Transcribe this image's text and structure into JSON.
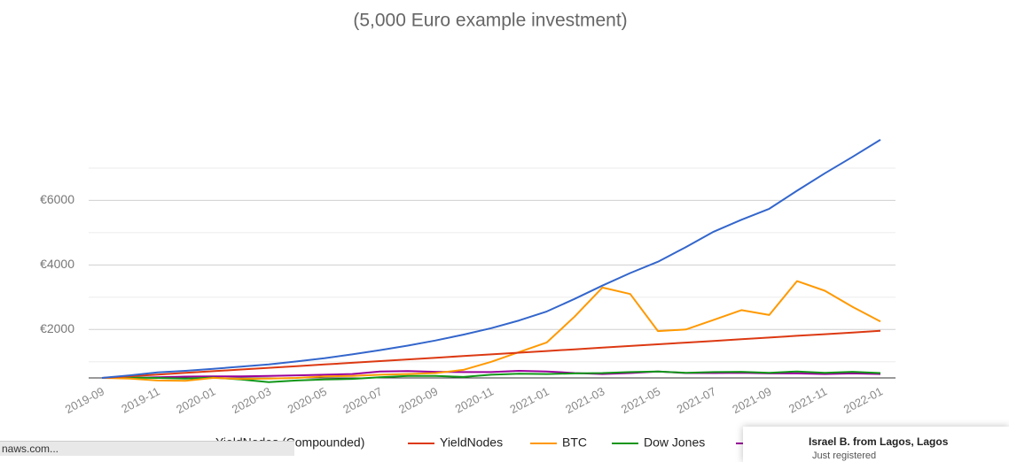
{
  "chart_data": {
    "type": "line",
    "title": "(5,000 Euro example investment)",
    "categories": [
      "2019-09",
      null,
      "2019-11",
      null,
      "2020-01",
      null,
      "2020-03",
      null,
      "2020-05",
      null,
      "2020-07",
      null,
      "2020-09",
      null,
      "2020-11",
      null,
      "2021-01",
      null,
      "2021-03",
      null,
      "2021-05",
      null,
      "2021-07",
      null,
      "2021-09",
      null,
      "2021-11",
      null,
      "2022-01"
    ],
    "ylim": [
      500,
      8000
    ],
    "yticks": [
      {
        "value": 2000,
        "label": "€2000"
      },
      {
        "value": 4000,
        "label": "€4000"
      },
      {
        "value": 6000,
        "label": "€6000"
      }
    ],
    "minor_grid": [
      1000,
      3000,
      5000,
      7000
    ],
    "grid": true,
    "series": [
      {
        "name": "YieldNodes (Compounded)",
        "color": "#3366cc",
        "values": [
          500,
          580,
          670,
          720,
          780,
          850,
          920,
          1010,
          1110,
          1230,
          1360,
          1500,
          1660,
          1840,
          2040,
          2280,
          2560,
          2950,
          3360,
          3750,
          4100,
          4550,
          5030,
          5400,
          5740,
          6300,
          6840,
          7350,
          7880
        ]
      },
      {
        "name": "YieldNodes",
        "color": "#dc3912",
        "values": [
          500,
          552,
          604,
          656,
          709,
          761,
          813,
          865,
          917,
          969,
          1021,
          1073,
          1126,
          1178,
          1230,
          1282,
          1334,
          1386,
          1439,
          1491,
          1543,
          1595,
          1647,
          1699,
          1751,
          1804,
          1856,
          1908,
          1960
        ]
      },
      {
        "name": "BTC",
        "color": "#ff9900",
        "values": [
          500,
          480,
          420,
          410,
          500,
          470,
          480,
          500,
          550,
          560,
          600,
          620,
          650,
          750,
          1000,
          1300,
          1600,
          2400,
          3300,
          3100,
          1950,
          2000,
          2300,
          2600,
          2450,
          3500,
          3200,
          2700,
          2250
        ]
      },
      {
        "name": "Dow Jones",
        "color": "#109618",
        "values": [
          500,
          510,
          500,
          480,
          510,
          450,
          370,
          420,
          450,
          470,
          520,
          560,
          560,
          530,
          600,
          630,
          620,
          640,
          650,
          680,
          700,
          660,
          680,
          690,
          660,
          700,
          660,
          690,
          650
        ]
      },
      {
        "color": "#990099",
        "values": [
          500,
          500,
          520,
          540,
          550,
          550,
          560,
          580,
          600,
          620,
          700,
          710,
          690,
          680,
          680,
          720,
          700,
          650,
          620,
          650,
          700,
          650,
          650,
          660,
          640,
          640,
          620,
          640,
          620
        ]
      }
    ]
  },
  "status_url": "naws.com...",
  "notification": {
    "title": "Israel B. from Lagos, Lagos",
    "subtitle": "Just registered"
  }
}
